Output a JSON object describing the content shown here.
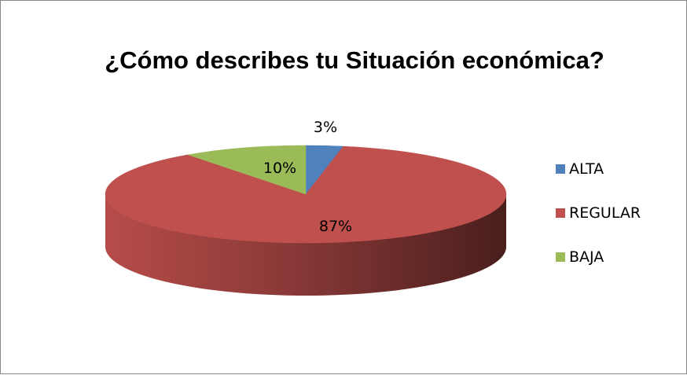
{
  "chart_data": {
    "type": "pie",
    "title": "¿Cómo describes tu Situación económica?",
    "categories": [
      "ALTA",
      "REGULAR",
      "BAJA"
    ],
    "values": [
      3,
      87,
      10
    ],
    "data_labels": [
      "3%",
      "87%",
      "10%"
    ],
    "colors": [
      "#4f81bd",
      "#c0504d",
      "#9bbb59"
    ],
    "three_d": true,
    "legend_position": "right"
  }
}
